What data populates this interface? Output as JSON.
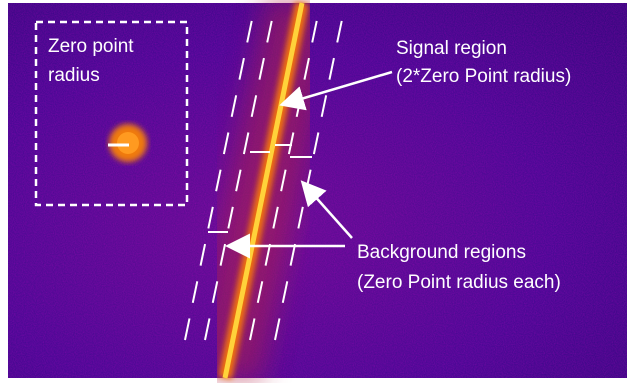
{
  "inset": {
    "label_lines": [
      "Zero point",
      "radius"
    ]
  },
  "annotations": [
    {
      "lines": [
        "Signal region",
        "(2*Zero Point radius)"
      ]
    },
    {
      "lines": [
        "Background regions",
        "(Zero Point radius each)"
      ]
    }
  ]
}
